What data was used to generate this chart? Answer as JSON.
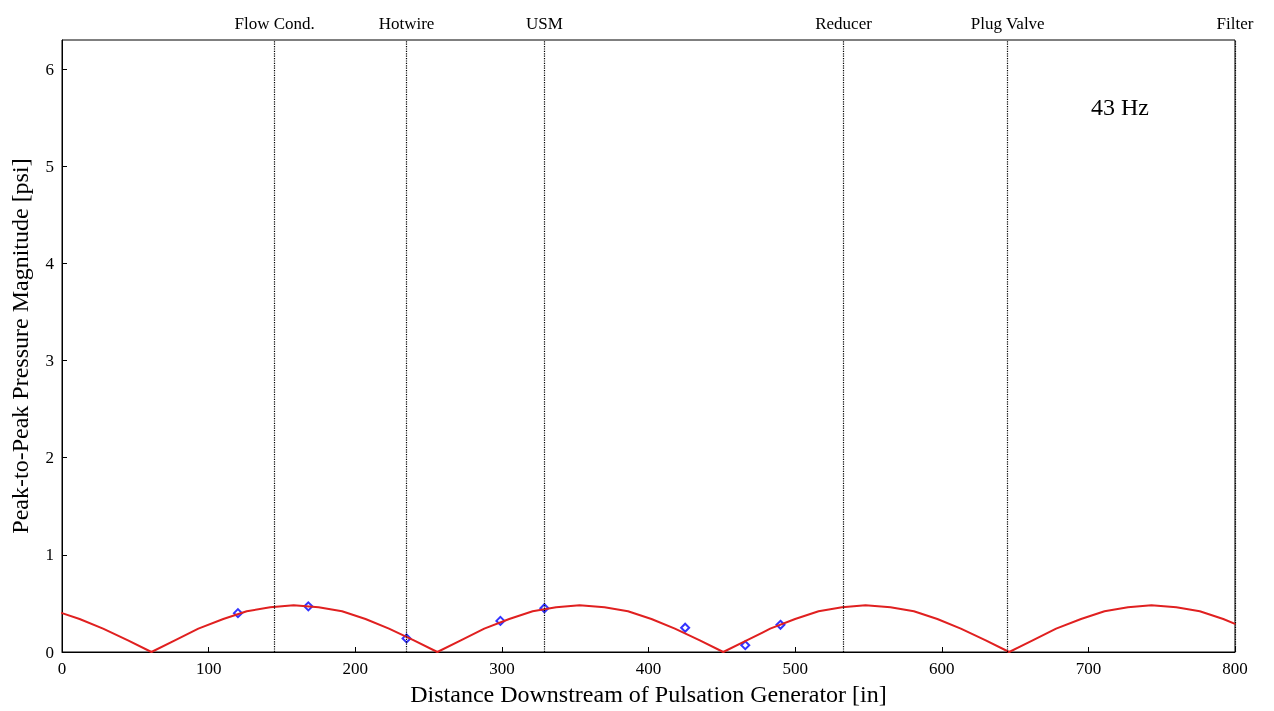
{
  "chart_data": {
    "type": "line",
    "xlabel": "Distance Downstream of Pulsation Generator [in]",
    "ylabel": "Peak-to-Peak Pressure Magnitude [psi]",
    "annotations": [
      "43 Hz"
    ],
    "xlim": [
      0,
      800
    ],
    "xticks": [
      0,
      100,
      200,
      300,
      400,
      500,
      600,
      700,
      800
    ],
    "ylim": [
      0,
      6.3
    ],
    "yticks": [
      0,
      1,
      2,
      3,
      4,
      5,
      6
    ],
    "grid": false,
    "series": [
      {
        "color": "#e02020",
        "marker": "none",
        "line_style": "solid",
        "x": [
          0,
          12,
          28,
          45,
          61,
          77,
          93,
          110,
          126,
          142,
          158,
          175,
          191,
          207,
          223,
          240,
          256,
          272,
          288,
          305,
          321,
          337,
          353,
          370,
          386,
          402,
          418,
          435,
          451,
          467,
          483,
          500,
          516,
          532,
          548,
          565,
          581,
          597,
          613,
          630,
          646,
          662,
          678,
          695,
          711,
          727,
          743,
          760,
          776,
          792,
          800
        ],
        "values": [
          0.4,
          0.34,
          0.24,
          0.12,
          0,
          0.12,
          0.24,
          0.34,
          0.42,
          0.46,
          0.48,
          0.46,
          0.42,
          0.34,
          0.24,
          0.12,
          0,
          0.12,
          0.24,
          0.34,
          0.42,
          0.46,
          0.48,
          0.46,
          0.42,
          0.34,
          0.24,
          0.12,
          0,
          0.12,
          0.24,
          0.34,
          0.42,
          0.46,
          0.48,
          0.46,
          0.42,
          0.34,
          0.24,
          0.12,
          0,
          0.12,
          0.24,
          0.34,
          0.42,
          0.46,
          0.48,
          0.46,
          0.42,
          0.34,
          0.29
        ]
      },
      {
        "type": "scatter",
        "color": "#0000ff",
        "marker": "diamond",
        "x": [
          120,
          168,
          235,
          299,
          329,
          425,
          466,
          490
        ],
        "values": [
          0.4,
          0.47,
          0.14,
          0.32,
          0.45,
          0.25,
          0.07,
          0.28
        ]
      }
    ],
    "ref_lines": [
      {
        "axis": "x",
        "value": 145,
        "label": "Flow Cond.",
        "color": "#000000",
        "line_style": "dotted"
      },
      {
        "axis": "x",
        "value": 235,
        "label": "Hotwire",
        "color": "#000000",
        "line_style": "dotted"
      },
      {
        "axis": "x",
        "value": 329,
        "label": "USM",
        "color": "#000000",
        "line_style": "dotted"
      },
      {
        "axis": "x",
        "value": 533,
        "label": "Reducer",
        "color": "#000000",
        "line_style": "dotted"
      },
      {
        "axis": "x",
        "value": 645,
        "label": "Plug Valve",
        "color": "#000000",
        "line_style": "dotted"
      },
      {
        "axis": "x",
        "value": 800,
        "label": "Filter",
        "color": "#000000",
        "line_style": "dotted"
      }
    ]
  }
}
